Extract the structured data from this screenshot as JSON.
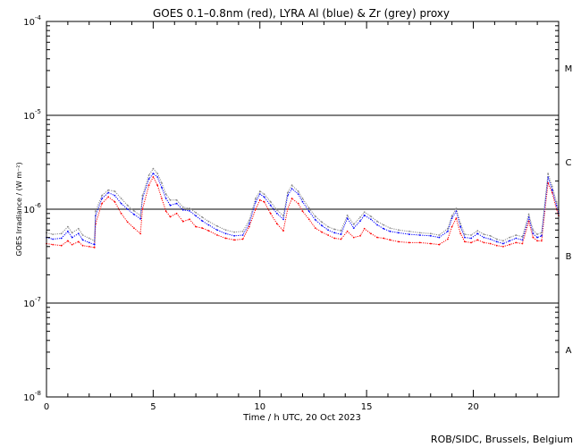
{
  "chart_data": {
    "type": "line",
    "title": "GOES 0.1–0.8nm (red), LYRA Al (blue) & Zr (grey) proxy",
    "xlabel": "Time / h UTC, 20 Oct 2023",
    "ylabel": "GOES Irradiance / (W m⁻²)",
    "xlim": [
      0,
      24
    ],
    "ylim": [
      1e-08,
      0.0001
    ],
    "yscale": "log",
    "x_ticks": [
      {
        "value": 0,
        "label": "0"
      },
      {
        "value": 5,
        "label": "5"
      },
      {
        "value": 10,
        "label": "10"
      },
      {
        "value": 15,
        "label": "15"
      },
      {
        "value": 20,
        "label": "20"
      }
    ],
    "y_ticks": [
      {
        "value": 1e-08,
        "base": "10",
        "exp": "-8"
      },
      {
        "value": 1e-07,
        "base": "10",
        "exp": "-7"
      },
      {
        "value": 1e-06,
        "base": "10",
        "exp": "-6"
      },
      {
        "value": 1e-05,
        "base": "10",
        "exp": "-5"
      },
      {
        "value": 0.0001,
        "base": "10",
        "exp": "-4"
      }
    ],
    "class_lines": [
      1e-07,
      1e-06,
      1e-05
    ],
    "class_labels": [
      {
        "label": "A",
        "value": 3.2e-08
      },
      {
        "label": "B",
        "value": 3.2e-07
      },
      {
        "label": "C",
        "value": 3.2e-06
      },
      {
        "label": "M",
        "value": 3.2e-05
      }
    ],
    "grid": false,
    "legend": "none",
    "series": [
      {
        "color": "#ff0000",
        "x": [
          0,
          0.3,
          0.7,
          1.0,
          1.2,
          1.5,
          1.7,
          2.0,
          2.25,
          2.3,
          2.6,
          2.9,
          3.2,
          3.5,
          3.8,
          4.1,
          4.4,
          4.5,
          4.8,
          5.0,
          5.2,
          5.4,
          5.6,
          5.8,
          6.1,
          6.4,
          6.7,
          7.0,
          7.3,
          7.6,
          8.0,
          8.4,
          8.8,
          9.2,
          9.5,
          9.8,
          10.0,
          10.2,
          10.5,
          10.8,
          11.1,
          11.3,
          11.5,
          11.8,
          12.0,
          12.3,
          12.6,
          12.9,
          13.2,
          13.5,
          13.8,
          14.1,
          14.4,
          14.7,
          14.9,
          15.2,
          15.5,
          15.8,
          16.1,
          16.5,
          17.0,
          17.5,
          18.0,
          18.4,
          18.8,
          19.0,
          19.2,
          19.4,
          19.6,
          19.9,
          20.2,
          20.5,
          20.8,
          21.1,
          21.4,
          21.7,
          22.0,
          22.3,
          22.6,
          22.8,
          23.0,
          23.2,
          23.5,
          23.7,
          23.9,
          24.0
        ],
        "values": [
          4.3e-07,
          4.2e-07,
          4.1e-07,
          4.6e-07,
          4.2e-07,
          4.5e-07,
          4.1e-07,
          4e-07,
          3.9e-07,
          7e-07,
          1.15e-06,
          1.35e-06,
          1.2e-06,
          9e-07,
          7.3e-07,
          6.3e-07,
          5.5e-07,
          1e-06,
          1.8e-06,
          2.2e-06,
          1.8e-06,
          1.3e-06,
          9.5e-07,
          8.3e-07,
          9e-07,
          7.4e-07,
          7.8e-07,
          6.5e-07,
          6.3e-07,
          5.9e-07,
          5.3e-07,
          4.9e-07,
          4.7e-07,
          4.8e-07,
          6.5e-07,
          1e-06,
          1.25e-06,
          1.2e-06,
          9e-07,
          7e-07,
          5.9e-07,
          1e-06,
          1.3e-06,
          1.15e-06,
          9.5e-07,
          7.8e-07,
          6.3e-07,
          5.7e-07,
          5.3e-07,
          4.9e-07,
          4.8e-07,
          5.8e-07,
          5e-07,
          5.2e-07,
          6.2e-07,
          5.5e-07,
          5e-07,
          4.9e-07,
          4.7e-07,
          4.5e-07,
          4.4e-07,
          4.4e-07,
          4.3e-07,
          4.2e-07,
          4.8e-07,
          6.5e-07,
          8e-07,
          5.5e-07,
          4.5e-07,
          4.4e-07,
          4.7e-07,
          4.4e-07,
          4.3e-07,
          4.1e-07,
          4e-07,
          4.2e-07,
          4.4e-07,
          4.3e-07,
          7.4e-07,
          5e-07,
          4.6e-07,
          4.6e-07,
          1.9e-06,
          1.5e-06,
          1e-06,
          8.5e-07
        ]
      },
      {
        "color": "#0000ff",
        "x": [
          0,
          0.3,
          0.7,
          1.0,
          1.2,
          1.5,
          1.7,
          2.0,
          2.25,
          2.3,
          2.6,
          2.9,
          3.2,
          3.5,
          3.8,
          4.1,
          4.4,
          4.5,
          4.8,
          5.0,
          5.2,
          5.4,
          5.6,
          5.8,
          6.1,
          6.4,
          6.7,
          7.0,
          7.3,
          7.6,
          8.0,
          8.4,
          8.8,
          9.2,
          9.5,
          9.8,
          10.0,
          10.2,
          10.5,
          10.8,
          11.1,
          11.3,
          11.5,
          11.8,
          12.0,
          12.3,
          12.6,
          12.9,
          13.2,
          13.5,
          13.8,
          14.1,
          14.4,
          14.7,
          14.9,
          15.2,
          15.5,
          15.8,
          16.1,
          16.5,
          17.0,
          17.5,
          18.0,
          18.4,
          18.8,
          19.0,
          19.2,
          19.4,
          19.6,
          19.9,
          20.2,
          20.5,
          20.8,
          21.1,
          21.4,
          21.7,
          22.0,
          22.3,
          22.6,
          22.8,
          23.0,
          23.2,
          23.5,
          23.7,
          23.9,
          24.0
        ],
        "values": [
          5e-07,
          4.8e-07,
          4.9e-07,
          5.8e-07,
          5e-07,
          5.5e-07,
          4.7e-07,
          4.4e-07,
          4.2e-07,
          8.5e-07,
          1.3e-06,
          1.5e-06,
          1.4e-06,
          1.15e-06,
          1e-06,
          8.8e-07,
          7.9e-07,
          1.3e-06,
          2.1e-06,
          2.4e-06,
          2.2e-06,
          1.7e-06,
          1.3e-06,
          1.1e-06,
          1.15e-06,
          9.8e-07,
          9.6e-07,
          8.5e-07,
          7.5e-07,
          6.8e-07,
          6e-07,
          5.5e-07,
          5.2e-07,
          5.3e-07,
          7e-07,
          1.2e-06,
          1.45e-06,
          1.35e-06,
          1.1e-06,
          9e-07,
          7.8e-07,
          1.4e-06,
          1.65e-06,
          1.45e-06,
          1.2e-06,
          9.5e-07,
          7.7e-07,
          6.7e-07,
          6e-07,
          5.6e-07,
          5.4e-07,
          8e-07,
          6.3e-07,
          7.5e-07,
          8.6e-07,
          7.8e-07,
          6.8e-07,
          6.2e-07,
          5.8e-07,
          5.6e-07,
          5.4e-07,
          5.3e-07,
          5.2e-07,
          5e-07,
          5.8e-07,
          8e-07,
          9.5e-07,
          6.5e-07,
          5e-07,
          4.9e-07,
          5.5e-07,
          5e-07,
          4.8e-07,
          4.5e-07,
          4.3e-07,
          4.6e-07,
          4.9e-07,
          4.7e-07,
          8.2e-07,
          5.5e-07,
          5e-07,
          5.2e-07,
          2.2e-06,
          1.6e-06,
          1.1e-06,
          9e-07
        ]
      },
      {
        "color": "#888888",
        "x": [
          0,
          0.3,
          0.7,
          1.0,
          1.2,
          1.5,
          1.7,
          2.0,
          2.25,
          2.3,
          2.6,
          2.9,
          3.2,
          3.5,
          3.8,
          4.1,
          4.4,
          4.5,
          4.8,
          5.0,
          5.2,
          5.4,
          5.6,
          5.8,
          6.1,
          6.4,
          6.7,
          7.0,
          7.3,
          7.6,
          8.0,
          8.4,
          8.8,
          9.2,
          9.5,
          9.8,
          10.0,
          10.2,
          10.5,
          10.8,
          11.1,
          11.3,
          11.5,
          11.8,
          12.0,
          12.3,
          12.6,
          12.9,
          13.2,
          13.5,
          13.8,
          14.1,
          14.4,
          14.7,
          14.9,
          15.2,
          15.5,
          15.8,
          16.1,
          16.5,
          17.0,
          17.5,
          18.0,
          18.4,
          18.8,
          19.0,
          19.2,
          19.4,
          19.6,
          19.9,
          20.2,
          20.5,
          20.8,
          21.1,
          21.4,
          21.7,
          22.0,
          22.3,
          22.6,
          22.8,
          23.0,
          23.2,
          23.5,
          23.7,
          23.9,
          24.0
        ],
        "values": [
          5.6e-07,
          5.4e-07,
          5.5e-07,
          6.5e-07,
          5.6e-07,
          6.2e-07,
          5.3e-07,
          4.9e-07,
          4.6e-07,
          9.5e-07,
          1.4e-06,
          1.6e-06,
          1.55e-06,
          1.3e-06,
          1.1e-06,
          9.6e-07,
          8.6e-07,
          1.4e-06,
          2.3e-06,
          2.7e-06,
          2.4e-06,
          1.9e-06,
          1.45e-06,
          1.25e-06,
          1.25e-06,
          1.05e-06,
          1.02e-06,
          9.2e-07,
          8.2e-07,
          7.4e-07,
          6.6e-07,
          6e-07,
          5.7e-07,
          5.8e-07,
          7.6e-07,
          1.3e-06,
          1.55e-06,
          1.45e-06,
          1.2e-06,
          9.8e-07,
          8.5e-07,
          1.5e-06,
          1.8e-06,
          1.55e-06,
          1.3e-06,
          1.03e-06,
          8.4e-07,
          7.3e-07,
          6.5e-07,
          6.1e-07,
          5.9e-07,
          8.6e-07,
          6.9e-07,
          8.2e-07,
          9.3e-07,
          8.4e-07,
          7.4e-07,
          6.8e-07,
          6.3e-07,
          6e-07,
          5.8e-07,
          5.6e-07,
          5.5e-07,
          5.3e-07,
          6.2e-07,
          8.5e-07,
          1.02e-06,
          7e-07,
          5.4e-07,
          5.3e-07,
          5.9e-07,
          5.4e-07,
          5.2e-07,
          4.8e-07,
          4.6e-07,
          5e-07,
          5.3e-07,
          5.1e-07,
          8.8e-07,
          6e-07,
          5.4e-07,
          5.6e-07,
          2.4e-06,
          1.75e-06,
          1.2e-06,
          9.8e-07
        ]
      }
    ]
  },
  "credit": "ROB/SIDC, Brussels, Belgium"
}
